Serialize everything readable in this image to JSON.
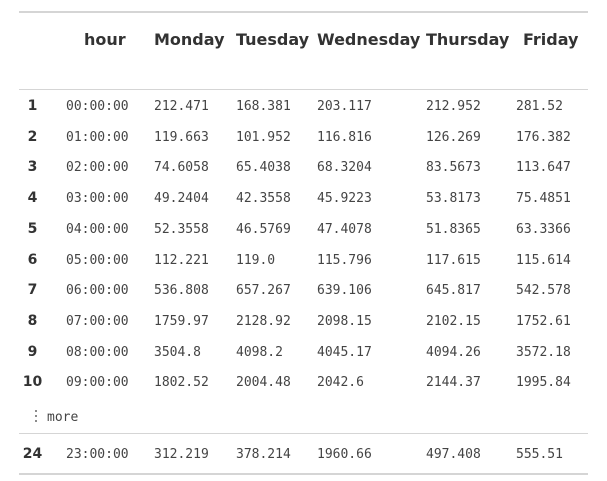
{
  "table": {
    "columns": [
      "hour",
      "Monday",
      "Tuesday",
      "Wednesday",
      "Thursday",
      "Friday"
    ],
    "rows": [
      {
        "idx": "1",
        "cells": [
          "00:00:00",
          "212.471",
          "168.381",
          "203.117",
          "212.952",
          "281.52"
        ]
      },
      {
        "idx": "2",
        "cells": [
          "01:00:00",
          "119.663",
          "101.952",
          "116.816",
          "126.269",
          "176.382"
        ]
      },
      {
        "idx": "3",
        "cells": [
          "02:00:00",
          "74.6058",
          "65.4038",
          "68.3204",
          "83.5673",
          "113.647"
        ]
      },
      {
        "idx": "4",
        "cells": [
          "03:00:00",
          "49.2404",
          "42.3558",
          "45.9223",
          "53.8173",
          "75.4851"
        ]
      },
      {
        "idx": "5",
        "cells": [
          "04:00:00",
          "52.3558",
          "46.5769",
          "47.4078",
          "51.8365",
          "63.3366"
        ]
      },
      {
        "idx": "6",
        "cells": [
          "05:00:00",
          "112.221",
          "119.0",
          "115.796",
          "117.615",
          "115.614"
        ]
      },
      {
        "idx": "7",
        "cells": [
          "06:00:00",
          "536.808",
          "657.267",
          "639.106",
          "645.817",
          "542.578"
        ]
      },
      {
        "idx": "8",
        "cells": [
          "07:00:00",
          "1759.97",
          "2128.92",
          "2098.15",
          "2102.15",
          "1752.61"
        ]
      },
      {
        "idx": "9",
        "cells": [
          "08:00:00",
          "3504.8",
          "4098.2",
          "4045.17",
          "4094.26",
          "3572.18"
        ]
      },
      {
        "idx": "10",
        "cells": [
          "09:00:00",
          "1802.52",
          "2004.48",
          "2042.6",
          "2144.37",
          "1995.84"
        ]
      }
    ],
    "more_label": "more",
    "last_row": {
      "idx": "24",
      "cells": [
        "23:00:00",
        "312.219",
        "378.214",
        "1960.66",
        "497.408",
        "555.51"
      ]
    }
  }
}
